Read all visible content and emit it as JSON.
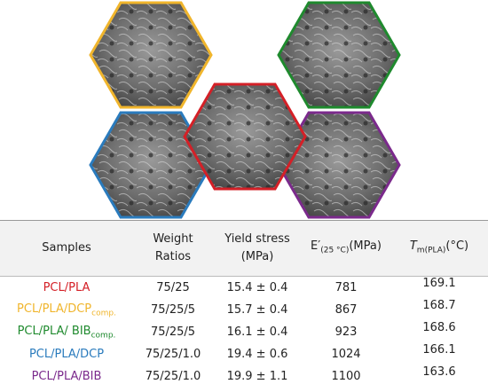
{
  "table": {
    "header": [
      {
        "text": "Samples"
      },
      {
        "lines": [
          "Weight",
          "Ratios"
        ]
      },
      {
        "lines": [
          "Yield stress",
          "(MPa)"
        ]
      },
      {
        "main": "E′",
        "sub": "(25 °C)",
        "unit": "(MPa)"
      },
      {
        "main": "T",
        "sub": "m(PLA)",
        "unit": "(°C)"
      }
    ],
    "rows": [
      {
        "name": "PCL/PLA",
        "color": "#d42027",
        "ratio": "75/25",
        "stress": "15.4 ± 0.4",
        "modulus": 781,
        "tm": 169.1
      },
      {
        "name": "PCL/PLA/DCP",
        "sub": "comp.",
        "color": "#f0b52c",
        "ratio": "75/25/5",
        "stress": "15.7 ± 0.4",
        "modulus": 867,
        "tm": 168.7
      },
      {
        "name": "PCL/PLA/ BIB",
        "sub": "comp.",
        "color": "#1f8a2e",
        "ratio": "75/25/5",
        "stress": "16.1 ± 0.4",
        "modulus": 923,
        "tm": 168.6
      },
      {
        "name": "PCL/PLA/DCP",
        "color": "#2a7bbd",
        "ratio": "75/25/1.0",
        "stress": "19.4 ± 0.6",
        "modulus": 1024,
        "tm": 166.1
      },
      {
        "name": "PCL/PLA/BIB",
        "color": "#7b2a8c",
        "ratio": "75/25/1.0",
        "stress": "19.9 ± 1.1",
        "modulus": 1100,
        "tm": 163.6
      }
    ]
  }
}
